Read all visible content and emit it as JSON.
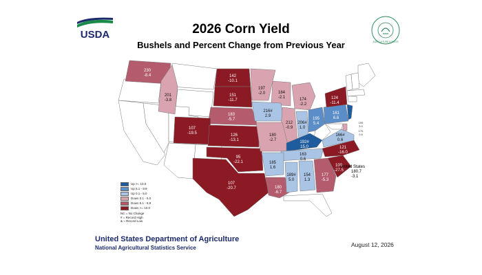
{
  "header": {
    "logo_text": "USDA",
    "seal_text": "AGRICULTURE COUNTS",
    "title": "2026 Corn Yield",
    "subtitle": "Bushels and Percent Change from Previous Year"
  },
  "colors": {
    "up_10": "#1f5c9e",
    "up_5_9": "#5b8ec9",
    "up_0_4": "#a9c4e4",
    "down_0_4": "#d9a3b0",
    "down_5_9": "#b55b6e",
    "down_10": "#8b1a24",
    "none": "#ffffff"
  },
  "states": [
    {
      "id": "wa",
      "v1": "230",
      "v2": "-8.4"
    },
    {
      "id": "id",
      "v1": "201",
      "v2": "-3.8"
    },
    {
      "id": "nd",
      "v1": "142",
      "v2": "-10.1"
    },
    {
      "id": "sd",
      "v1": "151",
      "v2": "-11.7"
    },
    {
      "id": "ne",
      "v1": "183",
      "v2": "-5.7"
    },
    {
      "id": "co",
      "v1": "107",
      "v2": "-19.5"
    },
    {
      "id": "ks",
      "v1": "126",
      "v2": "-13.1"
    },
    {
      "id": "ok",
      "v1": "95",
      "v2": "-22.1"
    },
    {
      "id": "tx",
      "v1": "107",
      "v2": "-20.7"
    },
    {
      "id": "mn",
      "v1": "197",
      "v2": "-2.0"
    },
    {
      "id": "wi",
      "v1": "184",
      "v2": "-2.1"
    },
    {
      "id": "ia",
      "v1": "216#",
      "v2": "2.9"
    },
    {
      "id": "il",
      "v1": "212",
      "v2": "-0.9"
    },
    {
      "id": "mo",
      "v1": "180",
      "v2": "-2.7"
    },
    {
      "id": "mi",
      "v1": "174",
      "v2": "-2.2"
    },
    {
      "id": "in",
      "v1": "206#",
      "v2": "1.0"
    },
    {
      "id": "oh",
      "v1": "195",
      "v2": "5.4"
    },
    {
      "id": "ky",
      "v1": "192#",
      "v2": "15.0"
    },
    {
      "id": "tn",
      "v1": "163",
      "v2": "0.6"
    },
    {
      "id": "ar",
      "v1": "185",
      "v2": "1.6"
    },
    {
      "id": "la",
      "v1": "180",
      "v2": "-6.7"
    },
    {
      "id": "ms",
      "v1": "189#",
      "v2": "5.0"
    },
    {
      "id": "al",
      "v1": "154",
      "v2": "1.3"
    },
    {
      "id": "ga",
      "v1": "177",
      "v2": "-5.3"
    },
    {
      "id": "sc",
      "v1": "100",
      "v2": "-27.5"
    },
    {
      "id": "nc",
      "v1": "121",
      "v2": "-16.0"
    },
    {
      "id": "va",
      "v1": "166#",
      "v2": "0.6"
    },
    {
      "id": "pa",
      "v1": "161",
      "v2": "6.6"
    },
    {
      "id": "ny",
      "v1": "124",
      "v2": "-11.4"
    },
    {
      "id": "nj",
      "v1": "159",
      "v2": "9.0"
    },
    {
      "id": "de",
      "v1": "175",
      "v2": "0.6"
    }
  ],
  "us_total": {
    "label": "United States",
    "v1": "180.7",
    "v2": "-3.1"
  },
  "legend": {
    "items": [
      {
        "label": "Up >= 10.0",
        "color": "#1f5c9e"
      },
      {
        "label": "Up 5.1 - 9.9",
        "color": "#5b8ec9"
      },
      {
        "label": "Up 0.1 - 5.0",
        "color": "#a9c4e4"
      },
      {
        "label": "Down 0.1 - 5.0",
        "color": "#d9a3b0"
      },
      {
        "label": "Down 5.1 - 9.9",
        "color": "#b55b6e"
      },
      {
        "label": "Down >= 10.0",
        "color": "#8b1a24"
      }
    ],
    "notes": [
      "NC = No Change",
      "# = Record High",
      "& = Record Low"
    ]
  },
  "footer": {
    "dept": "United States Department of Agriculture",
    "agency": "National Agricultural Statistics Service",
    "date": "August 12, 2026"
  }
}
